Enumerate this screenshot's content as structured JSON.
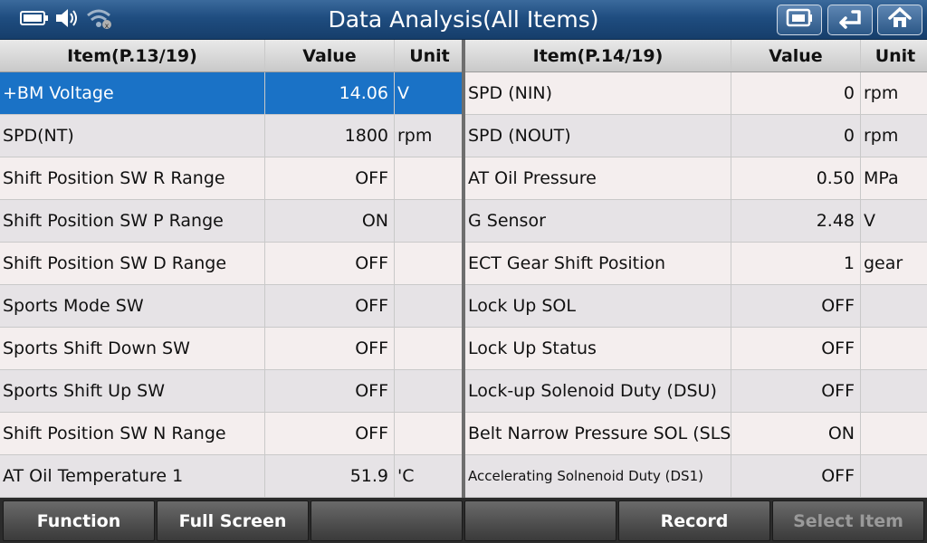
{
  "header": {
    "title": "Data Analysis(All Items)"
  },
  "status": {
    "battery_icon": "battery-icon",
    "speaker_icon": "speaker-icon",
    "wifi_icon": "wifi-icon"
  },
  "nav": {
    "icons": [
      "record-icon",
      "back-icon",
      "home-icon"
    ]
  },
  "left_table": {
    "headers": {
      "item": "Item(P.13/19)",
      "value": "Value",
      "unit": "Unit"
    },
    "rows": [
      {
        "item": "+BM Voltage",
        "value": "14.06",
        "unit": "V",
        "selected": true
      },
      {
        "item": "SPD(NT)",
        "value": "1800",
        "unit": "rpm"
      },
      {
        "item": "Shift Position SW R Range",
        "value": "OFF",
        "unit": ""
      },
      {
        "item": "Shift Position SW P Range",
        "value": "ON",
        "unit": ""
      },
      {
        "item": "Shift Position SW D Range",
        "value": "OFF",
        "unit": ""
      },
      {
        "item": "Sports Mode SW",
        "value": "OFF",
        "unit": ""
      },
      {
        "item": "Sports Shift Down SW",
        "value": "OFF",
        "unit": ""
      },
      {
        "item": "Sports Shift Up SW",
        "value": "OFF",
        "unit": ""
      },
      {
        "item": "Shift Position SW N Range",
        "value": "OFF",
        "unit": ""
      },
      {
        "item": "AT Oil Temperature 1",
        "value": "51.9",
        "unit": "'C"
      }
    ]
  },
  "right_table": {
    "headers": {
      "item": "Item(P.14/19)",
      "value": "Value",
      "unit": "Unit"
    },
    "rows": [
      {
        "item": "SPD (NIN)",
        "value": "0",
        "unit": "rpm"
      },
      {
        "item": "SPD (NOUT)",
        "value": "0",
        "unit": "rpm"
      },
      {
        "item": "AT Oil Pressure",
        "value": "0.50",
        "unit": "MPa"
      },
      {
        "item": "G Sensor",
        "value": "2.48",
        "unit": "V"
      },
      {
        "item": "ECT Gear Shift Position",
        "value": "1",
        "unit": "gear"
      },
      {
        "item": "Lock Up SOL",
        "value": "OFF",
        "unit": ""
      },
      {
        "item": "Lock Up Status",
        "value": "OFF",
        "unit": ""
      },
      {
        "item": "Lock-up Solenoid Duty (DSU)",
        "value": "OFF",
        "unit": ""
      },
      {
        "item": "Belt Narrow Pressure SOL (SLS)",
        "value": "ON",
        "unit": ""
      },
      {
        "item": "Accelerating Solnenoid Duty (DS1)",
        "value": "OFF",
        "unit": ""
      }
    ]
  },
  "toolbar": {
    "buttons": [
      {
        "label": "Function",
        "enabled": true
      },
      {
        "label": "Full Screen",
        "enabled": true
      },
      {
        "label": "",
        "enabled": true
      },
      {
        "label": "",
        "enabled": true
      },
      {
        "label": "Record",
        "enabled": true
      },
      {
        "label": "Select Item",
        "enabled": false
      }
    ]
  },
  "colors": {
    "title_bar": "#1f4d80",
    "selected_row": "#1a72c6",
    "toolbar": "#2b2b2b"
  }
}
